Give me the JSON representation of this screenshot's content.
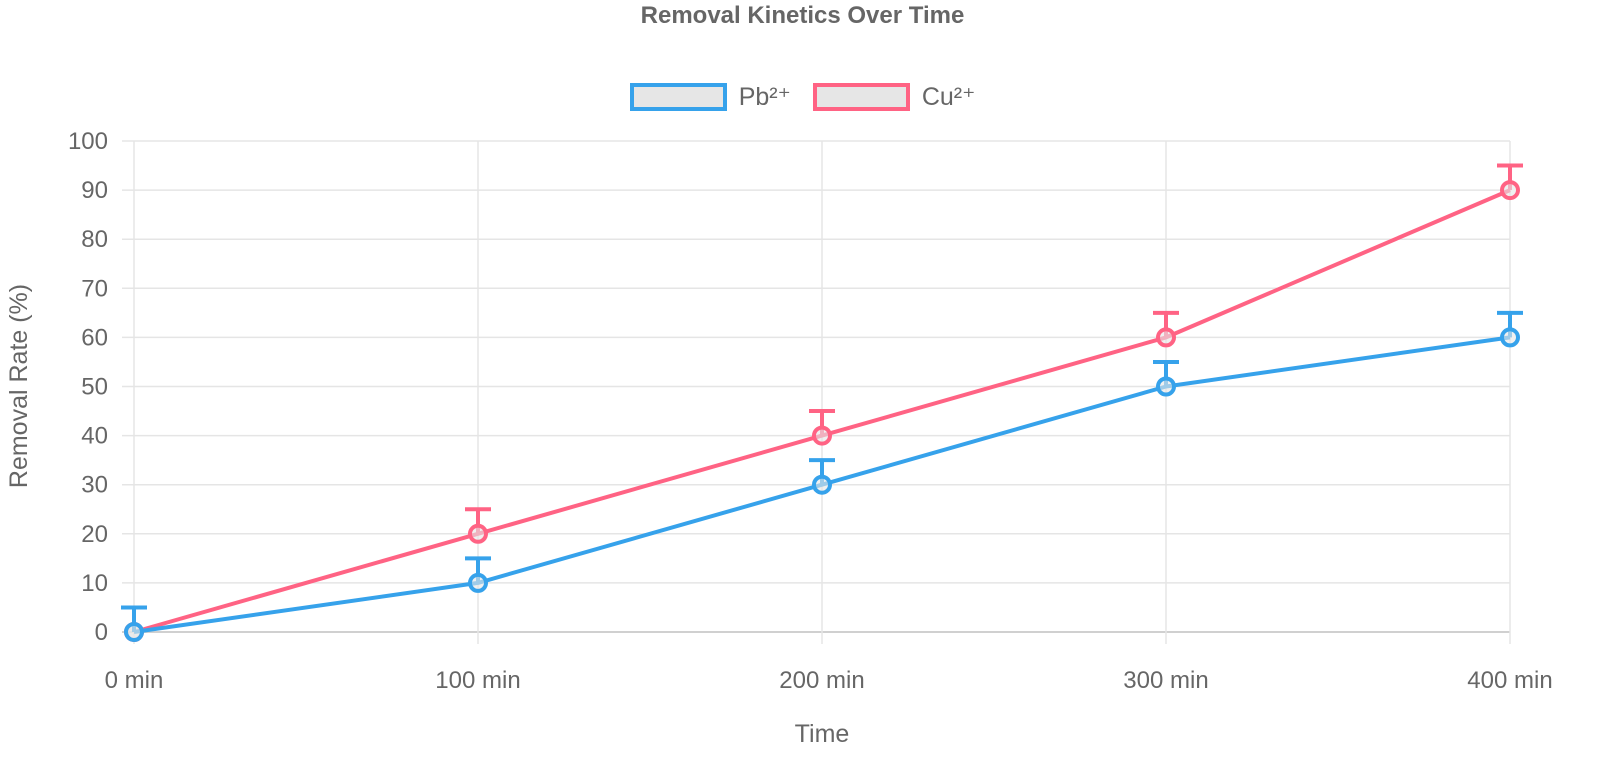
{
  "chart_data": {
    "type": "line",
    "title": "Removal Kinetics Over Time",
    "xlabel": "Time",
    "ylabel": "Removal Rate (%)",
    "categories": [
      "0 min",
      "100 min",
      "200 min",
      "300 min",
      "400 min"
    ],
    "x": [
      0,
      100,
      200,
      300,
      400
    ],
    "ylim": [
      0,
      100
    ],
    "yticks": [
      0,
      10,
      20,
      30,
      40,
      50,
      60,
      70,
      80,
      90,
      100
    ],
    "grid": true,
    "legend_position": "top",
    "series": [
      {
        "name": "Pb²⁺",
        "color": "#36a2eb",
        "values": [
          0,
          10,
          30,
          50,
          60
        ],
        "error": [
          5,
          5,
          5,
          5,
          5
        ]
      },
      {
        "name": "Cu²⁺",
        "color": "#ff6384",
        "values": [
          0,
          20,
          40,
          60,
          90
        ],
        "error": [
          5,
          5,
          5,
          5,
          5
        ]
      }
    ]
  },
  "legend": {
    "items": [
      {
        "label": "Pb²⁺",
        "color": "#36a2eb"
      },
      {
        "label": "Cu²⁺",
        "color": "#ff6384"
      }
    ]
  }
}
